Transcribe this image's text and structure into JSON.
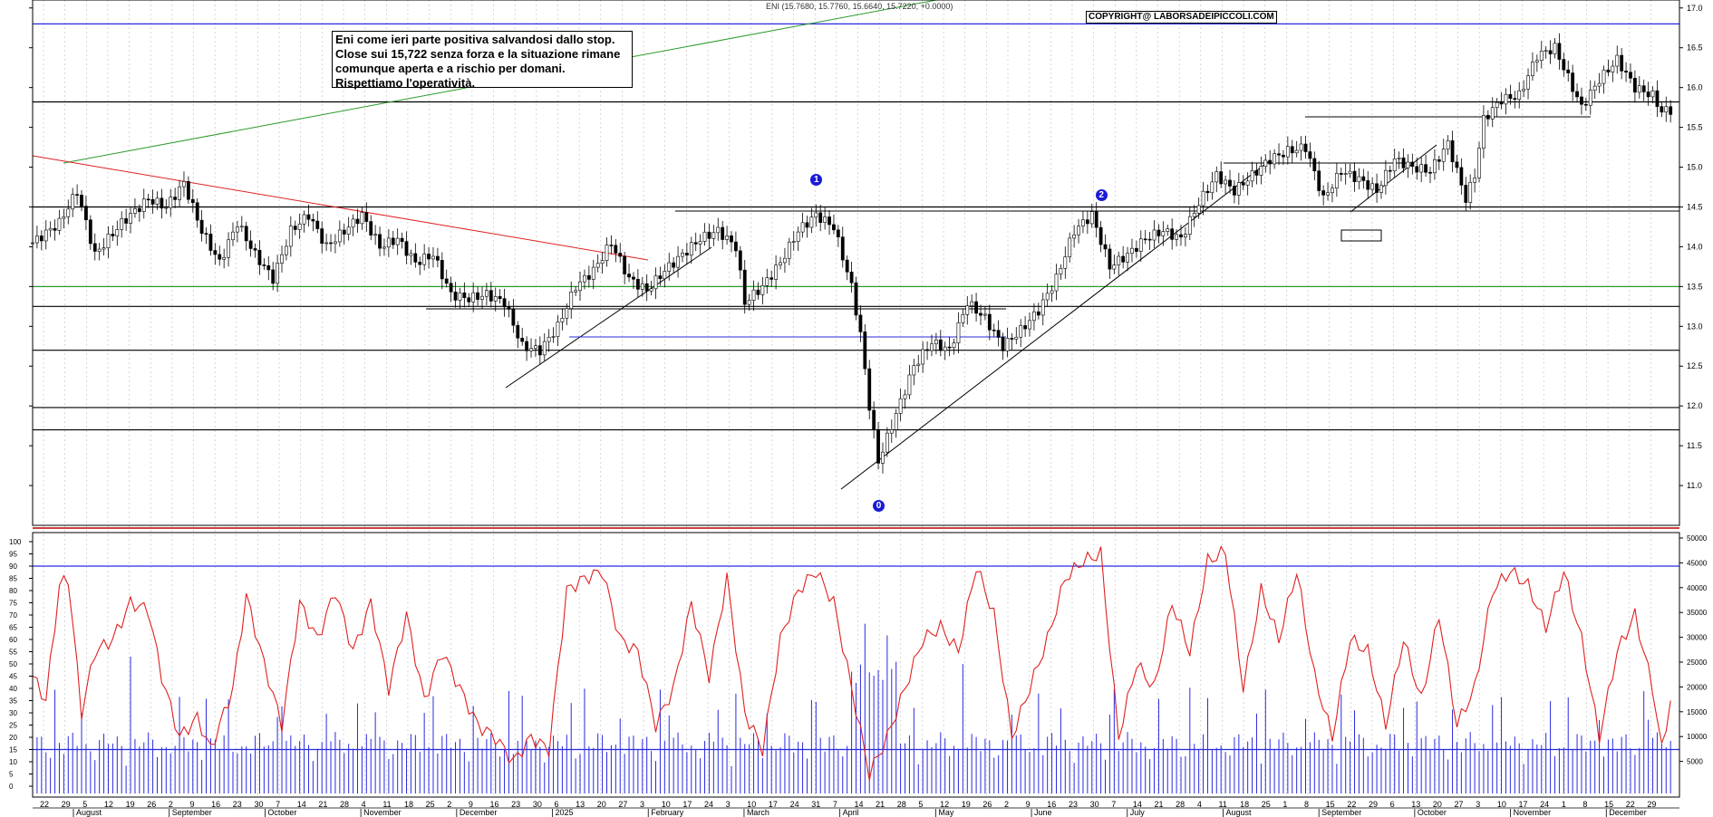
{
  "header": {
    "ohlc_readout": "ENI (15.7680, 15.7760, 15.6640, 15.7220, +0.0000)",
    "copyright": "COPYRIGHT@ LABORSADEIPICCOLI.COM"
  },
  "note": {
    "lines": [
      "Eni come ieri parte positiva salvandosi dallo stop.",
      "Close sui 15,722 senza forza e la situazione rimane",
      "comunque aperta e a rischio per domani.",
      "Rispettiamo l'operatività."
    ]
  },
  "wave_labels": [
    "0",
    "1",
    "2"
  ],
  "colors": {
    "price_axis": "#000000",
    "green_line": "#2a9a2a",
    "red_line": "#e02020",
    "blue_line": "#2a2ae0",
    "oscillator": "#e02020",
    "volume": "#2a2ae0",
    "grid": "#bdbdbd"
  },
  "chart_data": [
    {
      "type": "candlestick",
      "series_name": "ENI",
      "y_ticks": [
        "11.0",
        "11.5",
        "12.0",
        "12.5",
        "13.0",
        "13.5",
        "14.0",
        "14.5",
        "15.0",
        "15.5",
        "16.0",
        "16.5",
        "17.0"
      ],
      "ylim": [
        10.5,
        17.1
      ],
      "horizontal_levels": [
        {
          "value": 16.8,
          "color": "blue"
        },
        {
          "value": 15.82,
          "color": "black"
        },
        {
          "value": 14.5,
          "color": "black"
        },
        {
          "value": 13.5,
          "color": "green"
        },
        {
          "value": 13.25,
          "color": "black"
        },
        {
          "value": 12.7,
          "color": "black"
        },
        {
          "value": 11.98,
          "color": "black"
        },
        {
          "value": 11.7,
          "color": "black"
        }
      ],
      "close_path": [
        {
          "i": 0,
          "v": 14.05
        },
        {
          "i": 6,
          "v": 14.3
        },
        {
          "i": 10,
          "v": 14.7
        },
        {
          "i": 14,
          "v": 13.9
        },
        {
          "i": 20,
          "v": 14.3
        },
        {
          "i": 26,
          "v": 14.6
        },
        {
          "i": 30,
          "v": 14.5
        },
        {
          "i": 34,
          "v": 14.8
        },
        {
          "i": 38,
          "v": 14.2
        },
        {
          "i": 42,
          "v": 13.8
        },
        {
          "i": 46,
          "v": 14.3
        },
        {
          "i": 50,
          "v": 13.9
        },
        {
          "i": 54,
          "v": 13.6
        },
        {
          "i": 58,
          "v": 14.2
        },
        {
          "i": 62,
          "v": 14.4
        },
        {
          "i": 66,
          "v": 14.0
        },
        {
          "i": 70,
          "v": 14.2
        },
        {
          "i": 74,
          "v": 14.4
        },
        {
          "i": 78,
          "v": 14.0
        },
        {
          "i": 82,
          "v": 14.1
        },
        {
          "i": 86,
          "v": 13.8
        },
        {
          "i": 90,
          "v": 13.9
        },
        {
          "i": 94,
          "v": 13.4
        },
        {
          "i": 98,
          "v": 13.35
        },
        {
          "i": 102,
          "v": 13.4
        },
        {
          "i": 106,
          "v": 13.3
        },
        {
          "i": 110,
          "v": 12.75
        },
        {
          "i": 114,
          "v": 12.7
        },
        {
          "i": 118,
          "v": 13.0
        },
        {
          "i": 122,
          "v": 13.5
        },
        {
          "i": 126,
          "v": 13.7
        },
        {
          "i": 130,
          "v": 14.05
        },
        {
          "i": 134,
          "v": 13.6
        },
        {
          "i": 138,
          "v": 13.45
        },
        {
          "i": 142,
          "v": 13.7
        },
        {
          "i": 146,
          "v": 13.9
        },
        {
          "i": 150,
          "v": 14.1
        },
        {
          "i": 154,
          "v": 14.2
        },
        {
          "i": 158,
          "v": 14.0
        },
        {
          "i": 160,
          "v": 13.3
        },
        {
          "i": 164,
          "v": 13.5
        },
        {
          "i": 168,
          "v": 13.8
        },
        {
          "i": 172,
          "v": 14.2
        },
        {
          "i": 176,
          "v": 14.4
        },
        {
          "i": 180,
          "v": 14.25
        },
        {
          "i": 184,
          "v": 13.5
        },
        {
          "i": 186,
          "v": 12.9
        },
        {
          "i": 188,
          "v": 12.0
        },
        {
          "i": 190,
          "v": 11.3
        },
        {
          "i": 194,
          "v": 11.9
        },
        {
          "i": 198,
          "v": 12.5
        },
        {
          "i": 202,
          "v": 12.8
        },
        {
          "i": 206,
          "v": 12.7
        },
        {
          "i": 210,
          "v": 13.3
        },
        {
          "i": 214,
          "v": 13.1
        },
        {
          "i": 218,
          "v": 12.75
        },
        {
          "i": 222,
          "v": 12.95
        },
        {
          "i": 226,
          "v": 13.2
        },
        {
          "i": 230,
          "v": 13.6
        },
        {
          "i": 234,
          "v": 14.2
        },
        {
          "i": 238,
          "v": 14.4
        },
        {
          "i": 242,
          "v": 13.75
        },
        {
          "i": 246,
          "v": 13.9
        },
        {
          "i": 250,
          "v": 14.1
        },
        {
          "i": 254,
          "v": 14.2
        },
        {
          "i": 258,
          "v": 14.1
        },
        {
          "i": 262,
          "v": 14.55
        },
        {
          "i": 266,
          "v": 14.9
        },
        {
          "i": 270,
          "v": 14.7
        },
        {
          "i": 274,
          "v": 14.9
        },
        {
          "i": 278,
          "v": 15.1
        },
        {
          "i": 282,
          "v": 15.2
        },
        {
          "i": 286,
          "v": 15.25
        },
        {
          "i": 290,
          "v": 14.6
        },
        {
          "i": 294,
          "v": 14.95
        },
        {
          "i": 298,
          "v": 14.85
        },
        {
          "i": 302,
          "v": 14.7
        },
        {
          "i": 306,
          "v": 15.1
        },
        {
          "i": 310,
          "v": 15.0
        },
        {
          "i": 314,
          "v": 14.95
        },
        {
          "i": 318,
          "v": 15.3
        },
        {
          "i": 322,
          "v": 14.6
        },
        {
          "i": 324,
          "v": 14.9
        },
        {
          "i": 326,
          "v": 15.6
        },
        {
          "i": 330,
          "v": 15.85
        },
        {
          "i": 334,
          "v": 15.9
        },
        {
          "i": 338,
          "v": 16.4
        },
        {
          "i": 342,
          "v": 16.5
        },
        {
          "i": 346,
          "v": 16.0
        },
        {
          "i": 348,
          "v": 15.75
        },
        {
          "i": 352,
          "v": 16.1
        },
        {
          "i": 356,
          "v": 16.35
        },
        {
          "i": 360,
          "v": 16.0
        },
        {
          "i": 364,
          "v": 15.9
        },
        {
          "i": 366,
          "v": 15.7
        },
        {
          "i": 368,
          "v": 15.72
        }
      ],
      "annotations": [
        {
          "label": "1",
          "i": 176,
          "v": 14.85
        },
        {
          "label": "2",
          "i": 240,
          "v": 14.65
        },
        {
          "label": "0",
          "i": 190,
          "v": 10.75
        }
      ]
    },
    {
      "type": "line+bar",
      "y_ticks_left": [
        "0",
        "5",
        "10",
        "15",
        "20",
        "25",
        "30",
        "35",
        "40",
        "45",
        "50",
        "55",
        "60",
        "65",
        "70",
        "75",
        "80",
        "85",
        "90",
        "95",
        "100"
      ],
      "y_ticks_right": [
        "5000",
        "10000",
        "15000",
        "20000",
        "25000",
        "30000",
        "35000",
        "40000",
        "45000",
        "50000"
      ],
      "horizontal_levels": [
        90,
        15
      ],
      "oscillator": [
        {
          "i": 0,
          "v": 45
        },
        {
          "i": 3,
          "v": 35
        },
        {
          "i": 6,
          "v": 82
        },
        {
          "i": 8,
          "v": 85
        },
        {
          "i": 11,
          "v": 30
        },
        {
          "i": 14,
          "v": 55
        },
        {
          "i": 18,
          "v": 60
        },
        {
          "i": 22,
          "v": 75
        },
        {
          "i": 26,
          "v": 72
        },
        {
          "i": 29,
          "v": 45
        },
        {
          "i": 33,
          "v": 20
        },
        {
          "i": 37,
          "v": 28
        },
        {
          "i": 40,
          "v": 15
        },
        {
          "i": 45,
          "v": 40
        },
        {
          "i": 48,
          "v": 78
        },
        {
          "i": 52,
          "v": 50
        },
        {
          "i": 56,
          "v": 25
        },
        {
          "i": 60,
          "v": 75
        },
        {
          "i": 64,
          "v": 60
        },
        {
          "i": 68,
          "v": 80
        },
        {
          "i": 72,
          "v": 55
        },
        {
          "i": 76,
          "v": 75
        },
        {
          "i": 80,
          "v": 40
        },
        {
          "i": 84,
          "v": 70
        },
        {
          "i": 88,
          "v": 35
        },
        {
          "i": 92,
          "v": 55
        },
        {
          "i": 96,
          "v": 40
        },
        {
          "i": 100,
          "v": 25
        },
        {
          "i": 104,
          "v": 20
        },
        {
          "i": 108,
          "v": 10
        },
        {
          "i": 112,
          "v": 20
        },
        {
          "i": 116,
          "v": 15
        },
        {
          "i": 120,
          "v": 80
        },
        {
          "i": 124,
          "v": 85
        },
        {
          "i": 128,
          "v": 88
        },
        {
          "i": 132,
          "v": 60
        },
        {
          "i": 136,
          "v": 55
        },
        {
          "i": 140,
          "v": 25
        },
        {
          "i": 144,
          "v": 40
        },
        {
          "i": 148,
          "v": 75
        },
        {
          "i": 152,
          "v": 45
        },
        {
          "i": 156,
          "v": 85
        },
        {
          "i": 160,
          "v": 30
        },
        {
          "i": 164,
          "v": 15
        },
        {
          "i": 168,
          "v": 60
        },
        {
          "i": 172,
          "v": 80
        },
        {
          "i": 176,
          "v": 88
        },
        {
          "i": 180,
          "v": 75
        },
        {
          "i": 184,
          "v": 40
        },
        {
          "i": 188,
          "v": 5
        },
        {
          "i": 192,
          "v": 20
        },
        {
          "i": 196,
          "v": 40
        },
        {
          "i": 200,
          "v": 60
        },
        {
          "i": 204,
          "v": 65
        },
        {
          "i": 208,
          "v": 55
        },
        {
          "i": 212,
          "v": 90
        },
        {
          "i": 216,
          "v": 70
        },
        {
          "i": 220,
          "v": 20
        },
        {
          "i": 224,
          "v": 40
        },
        {
          "i": 228,
          "v": 60
        },
        {
          "i": 232,
          "v": 85
        },
        {
          "i": 236,
          "v": 92
        },
        {
          "i": 240,
          "v": 95
        },
        {
          "i": 244,
          "v": 20
        },
        {
          "i": 248,
          "v": 50
        },
        {
          "i": 252,
          "v": 40
        },
        {
          "i": 256,
          "v": 75
        },
        {
          "i": 260,
          "v": 55
        },
        {
          "i": 264,
          "v": 92
        },
        {
          "i": 268,
          "v": 96
        },
        {
          "i": 272,
          "v": 40
        },
        {
          "i": 276,
          "v": 80
        },
        {
          "i": 280,
          "v": 60
        },
        {
          "i": 284,
          "v": 88
        },
        {
          "i": 288,
          "v": 45
        },
        {
          "i": 292,
          "v": 20
        },
        {
          "i": 296,
          "v": 60
        },
        {
          "i": 300,
          "v": 55
        },
        {
          "i": 304,
          "v": 25
        },
        {
          "i": 308,
          "v": 60
        },
        {
          "i": 312,
          "v": 35
        },
        {
          "i": 316,
          "v": 70
        },
        {
          "i": 320,
          "v": 25
        },
        {
          "i": 324,
          "v": 40
        },
        {
          "i": 328,
          "v": 80
        },
        {
          "i": 332,
          "v": 88
        },
        {
          "i": 336,
          "v": 82
        },
        {
          "i": 340,
          "v": 65
        },
        {
          "i": 344,
          "v": 88
        },
        {
          "i": 348,
          "v": 60
        },
        {
          "i": 352,
          "v": 20
        },
        {
          "i": 356,
          "v": 55
        },
        {
          "i": 360,
          "v": 70
        },
        {
          "i": 364,
          "v": 40
        },
        {
          "i": 366,
          "v": 15
        },
        {
          "i": 368,
          "v": 35
        }
      ]
    }
  ],
  "x_axis": {
    "day_ticks": [
      "22",
      "29",
      "5",
      "12",
      "19",
      "26",
      "2",
      "9",
      "16",
      "23",
      "30",
      "7",
      "14",
      "21",
      "28",
      "4",
      "11",
      "18",
      "25",
      "2",
      "9",
      "16",
      "23",
      "30",
      "6",
      "13",
      "20",
      "27",
      "3",
      "10",
      "17",
      "24",
      "3",
      "10",
      "17",
      "24",
      "31",
      "7",
      "14",
      "21",
      "28",
      "5",
      "12",
      "19",
      "26",
      "2",
      "9",
      "16",
      "23",
      "30",
      "7",
      "14",
      "21",
      "28",
      "4",
      "11",
      "18",
      "25",
      "1",
      "8",
      "15",
      "22",
      "29",
      "6",
      "13",
      "20",
      "27",
      "3",
      "10",
      "17",
      "24",
      "1",
      "8",
      "15",
      "22",
      "29"
    ],
    "months": [
      "August",
      "September",
      "October",
      "November",
      "December",
      "2025",
      "February",
      "March",
      "April",
      "May",
      "June",
      "July",
      "August",
      "September",
      "October",
      "November",
      "December"
    ]
  }
}
